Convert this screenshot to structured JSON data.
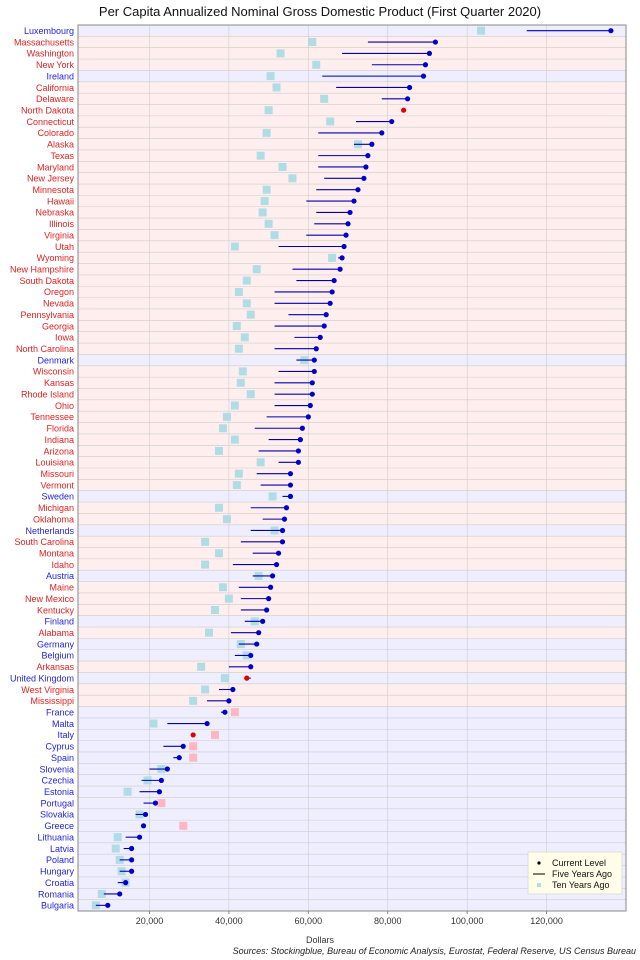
{
  "chart_data": {
    "type": "dot",
    "title": "Per Capita Annualized Nominal Gross Domestic Product (First Quarter 2020)",
    "xlabel": "Dollars",
    "source": "Sources: Stockingblue, Bureau of Economic Analysis, Eurostat, Federal Reserve, US Census Bureau",
    "x_range": [
      2000,
      140000
    ],
    "x_ticks": [
      20000,
      40000,
      60000,
      80000,
      100000,
      120000
    ],
    "x_tick_labels": [
      "20,000",
      "40,000",
      "60,000",
      "80,000",
      "100,000",
      "120,000"
    ],
    "legend": {
      "position": "bottom-right",
      "entries": [
        "Current Level",
        "Five Years Ago",
        "Ten Years Ago"
      ]
    },
    "colors": {
      "eu_label": "#1f1fd8",
      "us_label": "#e01f1f",
      "eu_band": "#eeeeff",
      "us_band": "#ffeeee",
      "current_up": "#0000cc",
      "current_down": "#e00000",
      "five_year_line": "#0000aa",
      "ten_year_up": "#b0dce6",
      "ten_year_down": "#ffb6c1",
      "grid": "#cccccc"
    },
    "points": [
      {
        "name": "Luxembourg",
        "region": "EU",
        "current": 136200,
        "five": 115000,
        "ten": 103500
      },
      {
        "name": "Massachusetts",
        "region": "US",
        "current": 92000,
        "five": 75000,
        "ten": 61000
      },
      {
        "name": "Washington",
        "region": "US",
        "current": 90500,
        "five": 68500,
        "ten": 53000
      },
      {
        "name": "New York",
        "region": "US",
        "current": 89500,
        "five": 76000,
        "ten": 62000
      },
      {
        "name": "Ireland",
        "region": "EU",
        "current": 89000,
        "five": 63500,
        "ten": 50500
      },
      {
        "name": "California",
        "region": "US",
        "current": 85500,
        "five": 67000,
        "ten": 52000
      },
      {
        "name": "Delaware",
        "region": "US",
        "current": 85000,
        "five": 78500,
        "ten": 64000
      },
      {
        "name": "North Dakota",
        "region": "US",
        "current": 84000,
        "five": 84500,
        "ten": 50000
      },
      {
        "name": "Connecticut",
        "region": "US",
        "current": 81000,
        "five": 72000,
        "ten": 65500
      },
      {
        "name": "Colorado",
        "region": "US",
        "current": 78500,
        "five": 62500,
        "ten": 49500
      },
      {
        "name": "Alaska",
        "region": "US",
        "current": 76000,
        "five": 71500,
        "ten": 72500
      },
      {
        "name": "Texas",
        "region": "US",
        "current": 75000,
        "five": 62500,
        "ten": 48000
      },
      {
        "name": "Maryland",
        "region": "US",
        "current": 74500,
        "five": 62500,
        "ten": 53500
      },
      {
        "name": "New Jersey",
        "region": "US",
        "current": 74000,
        "five": 64000,
        "ten": 56000
      },
      {
        "name": "Minnesota",
        "region": "US",
        "current": 72500,
        "five": 62000,
        "ten": 49500
      },
      {
        "name": "Hawaii",
        "region": "US",
        "current": 71500,
        "five": 59500,
        "ten": 49000
      },
      {
        "name": "Nebraska",
        "region": "US",
        "current": 70500,
        "five": 62000,
        "ten": 48500
      },
      {
        "name": "Illinois",
        "region": "US",
        "current": 70000,
        "five": 61500,
        "ten": 50000
      },
      {
        "name": "Virginia",
        "region": "US",
        "current": 69500,
        "five": 59500,
        "ten": 51500
      },
      {
        "name": "Utah",
        "region": "US",
        "current": 69000,
        "five": 52500,
        "ten": 41500
      },
      {
        "name": "Wyoming",
        "region": "US",
        "current": 68500,
        "five": 67500,
        "ten": 66000
      },
      {
        "name": "New Hampshire",
        "region": "US",
        "current": 68000,
        "five": 56000,
        "ten": 47000
      },
      {
        "name": "South Dakota",
        "region": "US",
        "current": 66500,
        "five": 57000,
        "ten": 44500
      },
      {
        "name": "Oregon",
        "region": "US",
        "current": 66000,
        "five": 51500,
        "ten": 42500
      },
      {
        "name": "Nevada",
        "region": "US",
        "current": 65500,
        "five": 51500,
        "ten": 44500
      },
      {
        "name": "Pennsylvania",
        "region": "US",
        "current": 64500,
        "five": 55000,
        "ten": 45500
      },
      {
        "name": "Georgia",
        "region": "US",
        "current": 64000,
        "five": 51500,
        "ten": 42000
      },
      {
        "name": "Iowa",
        "region": "US",
        "current": 63000,
        "five": 56500,
        "ten": 44000
      },
      {
        "name": "North Carolina",
        "region": "US",
        "current": 62000,
        "five": 51500,
        "ten": 42500
      },
      {
        "name": "Denmark",
        "region": "EU",
        "current": 61500,
        "five": 57000,
        "ten": 59000
      },
      {
        "name": "Wisconsin",
        "region": "US",
        "current": 61500,
        "five": 52500,
        "ten": 43500
      },
      {
        "name": "Kansas",
        "region": "US",
        "current": 61000,
        "five": 51500,
        "ten": 43000
      },
      {
        "name": "Rhode Island",
        "region": "US",
        "current": 61000,
        "five": 51500,
        "ten": 45500
      },
      {
        "name": "Ohio",
        "region": "US",
        "current": 60500,
        "five": 51500,
        "ten": 41500
      },
      {
        "name": "Tennessee",
        "region": "US",
        "current": 60000,
        "five": 49500,
        "ten": 39500
      },
      {
        "name": "Florida",
        "region": "US",
        "current": 58500,
        "five": 46500,
        "ten": 38500
      },
      {
        "name": "Indiana",
        "region": "US",
        "current": 58000,
        "five": 50000,
        "ten": 41500
      },
      {
        "name": "Arizona",
        "region": "US",
        "current": 57500,
        "five": 47500,
        "ten": 37500
      },
      {
        "name": "Louisiana",
        "region": "US",
        "current": 57500,
        "five": 52500,
        "ten": 48000
      },
      {
        "name": "Missouri",
        "region": "US",
        "current": 55500,
        "five": 47000,
        "ten": 42500
      },
      {
        "name": "Vermont",
        "region": "US",
        "current": 55500,
        "five": 48000,
        "ten": 42000
      },
      {
        "name": "Sweden",
        "region": "EU",
        "current": 55500,
        "five": 53500,
        "ten": 51000
      },
      {
        "name": "Michigan",
        "region": "US",
        "current": 54500,
        "five": 45500,
        "ten": 37500
      },
      {
        "name": "Oklahoma",
        "region": "US",
        "current": 54000,
        "five": 48500,
        "ten": 39500
      },
      {
        "name": "Netherlands",
        "region": "EU",
        "current": 53500,
        "five": 45500,
        "ten": 51500
      },
      {
        "name": "South Carolina",
        "region": "US",
        "current": 53500,
        "five": 43000,
        "ten": 34000
      },
      {
        "name": "Montana",
        "region": "US",
        "current": 52500,
        "five": 46000,
        "ten": 37500
      },
      {
        "name": "Idaho",
        "region": "US",
        "current": 52000,
        "five": 41000,
        "ten": 34000
      },
      {
        "name": "Austria",
        "region": "EU",
        "current": 51000,
        "five": 46000,
        "ten": 47500
      },
      {
        "name": "Maine",
        "region": "US",
        "current": 50500,
        "five": 42500,
        "ten": 38500
      },
      {
        "name": "New Mexico",
        "region": "US",
        "current": 50000,
        "five": 43000,
        "ten": 40000
      },
      {
        "name": "Kentucky",
        "region": "US",
        "current": 49500,
        "five": 43000,
        "ten": 36500
      },
      {
        "name": "Finland",
        "region": "EU",
        "current": 48500,
        "five": 44000,
        "ten": 46500
      },
      {
        "name": "Alabama",
        "region": "US",
        "current": 47500,
        "five": 40500,
        "ten": 35000
      },
      {
        "name": "Germany",
        "region": "EU",
        "current": 47000,
        "five": 42500,
        "ten": 43000
      },
      {
        "name": "Belgium",
        "region": "EU",
        "current": 45500,
        "five": 41500,
        "ten": 44500
      },
      {
        "name": "Arkansas",
        "region": "US",
        "current": 45500,
        "five": 40000,
        "ten": 33000
      },
      {
        "name": "United Kingdom",
        "region": "EU",
        "current": 44500,
        "five": 45500,
        "ten": 39000
      },
      {
        "name": "West Virginia",
        "region": "US",
        "current": 41000,
        "five": 37500,
        "ten": 34000
      },
      {
        "name": "Mississippi",
        "region": "US",
        "current": 40000,
        "five": 34500,
        "ten": 31000
      },
      {
        "name": "France",
        "region": "EU",
        "current": 39000,
        "five": 38000,
        "ten": 41500
      },
      {
        "name": "Malta",
        "region": "EU",
        "current": 34500,
        "five": 24500,
        "ten": 21000
      },
      {
        "name": "Italy",
        "region": "EU",
        "current": 31000,
        "five": 31500,
        "ten": 36500
      },
      {
        "name": "Cyprus",
        "region": "EU",
        "current": 28500,
        "five": 23500,
        "ten": 31000
      },
      {
        "name": "Spain",
        "region": "EU",
        "current": 27500,
        "five": 26000,
        "ten": 31000
      },
      {
        "name": "Slovenia",
        "region": "EU",
        "current": 24500,
        "five": 20000,
        "ten": 23000
      },
      {
        "name": "Czechia",
        "region": "EU",
        "current": 23000,
        "five": 18000,
        "ten": 19500
      },
      {
        "name": "Estonia",
        "region": "EU",
        "current": 22500,
        "five": 17500,
        "ten": 14500
      },
      {
        "name": "Portugal",
        "region": "EU",
        "current": 21500,
        "five": 18500,
        "ten": 23000
      },
      {
        "name": "Slovakia",
        "region": "EU",
        "current": 19000,
        "five": 16500,
        "ten": 17500
      },
      {
        "name": "Greece",
        "region": "EU",
        "current": 18500,
        "five": 18500,
        "ten": 28500
      },
      {
        "name": "Lithuania",
        "region": "EU",
        "current": 17500,
        "five": 14000,
        "ten": 12000
      },
      {
        "name": "Latvia",
        "region": "EU",
        "current": 15500,
        "five": 13500,
        "ten": 11500
      },
      {
        "name": "Poland",
        "region": "EU",
        "current": 15500,
        "five": 12500,
        "ten": 12500
      },
      {
        "name": "Hungary",
        "region": "EU",
        "current": 15500,
        "five": 12500,
        "ten": 13000
      },
      {
        "name": "Croatia",
        "region": "EU",
        "current": 14000,
        "five": 12000,
        "ten": 14000
      },
      {
        "name": "Romania",
        "region": "EU",
        "current": 12500,
        "five": 8500,
        "ten": 8000
      },
      {
        "name": "Bulgaria",
        "region": "EU",
        "current": 9500,
        "five": 6500,
        "ten": 6500
      }
    ]
  }
}
